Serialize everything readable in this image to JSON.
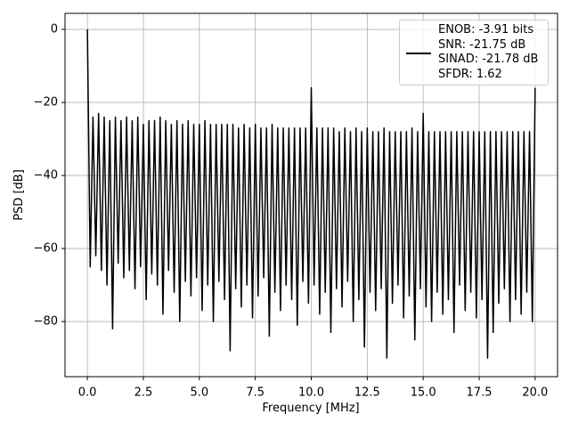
{
  "chart_data": {
    "type": "line",
    "xlabel": "Frequency [MHz]",
    "ylabel": "PSD [dB]",
    "xlim": [
      -1,
      21
    ],
    "ylim": [
      -95.1,
      4.4
    ],
    "xticks": [
      {
        "value": 0,
        "label": "0.0"
      },
      {
        "value": 2.5,
        "label": "2.5"
      },
      {
        "value": 5,
        "label": "5.0"
      },
      {
        "value": 7.5,
        "label": "7.5"
      },
      {
        "value": 10,
        "label": "10.0"
      },
      {
        "value": 12.5,
        "label": "12.5"
      },
      {
        "value": 15,
        "label": "15.0"
      },
      {
        "value": 17.5,
        "label": "17.5"
      },
      {
        "value": 20,
        "label": "20.0"
      }
    ],
    "yticks": [
      0,
      {
        "value": -20,
        "label": "−20"
      },
      {
        "value": -40,
        "label": "−40"
      },
      {
        "value": -60,
        "label": "−60"
      },
      {
        "value": -80,
        "label": "−80"
      }
    ],
    "grid": true,
    "legend": "upper right",
    "x": [
      0,
      0.125,
      0.25,
      0.375,
      0.5,
      0.625,
      0.75,
      0.875,
      1,
      1.125,
      1.25,
      1.375,
      1.5,
      1.625,
      1.75,
      1.875,
      2,
      2.125,
      2.25,
      2.375,
      2.5,
      2.625,
      2.75,
      2.875,
      3,
      3.125,
      3.25,
      3.375,
      3.5,
      3.625,
      3.75,
      3.875,
      4,
      4.125,
      4.25,
      4.375,
      4.5,
      4.625,
      4.75,
      4.875,
      5,
      5.125,
      5.25,
      5.375,
      5.5,
      5.625,
      5.75,
      5.875,
      6,
      6.125,
      6.25,
      6.375,
      6.5,
      6.625,
      6.75,
      6.875,
      7,
      7.125,
      7.25,
      7.375,
      7.5,
      7.625,
      7.75,
      7.875,
      8,
      8.125,
      8.25,
      8.375,
      8.5,
      8.625,
      8.75,
      8.875,
      9,
      9.125,
      9.25,
      9.375,
      9.5,
      9.625,
      9.75,
      9.875,
      10,
      10.125,
      10.25,
      10.375,
      10.5,
      10.625,
      10.75,
      10.875,
      11,
      11.125,
      11.25,
      11.375,
      11.5,
      11.625,
      11.75,
      11.875,
      12,
      12.125,
      12.25,
      12.375,
      12.5,
      12.625,
      12.75,
      12.875,
      13,
      13.125,
      13.25,
      13.375,
      13.5,
      13.625,
      13.75,
      13.875,
      14,
      14.125,
      14.25,
      14.375,
      14.5,
      14.625,
      14.75,
      14.875,
      15,
      15.125,
      15.25,
      15.375,
      15.5,
      15.625,
      15.75,
      15.875,
      16,
      16.125,
      16.25,
      16.375,
      16.5,
      16.625,
      16.75,
      16.875,
      17,
      17.125,
      17.25,
      17.375,
      17.5,
      17.625,
      17.75,
      17.875,
      18,
      18.125,
      18.25,
      18.375,
      18.5,
      18.625,
      18.75,
      18.875,
      19,
      19.125,
      19.25,
      19.375,
      19.5,
      19.625,
      19.75,
      19.875,
      20
    ],
    "series": [
      {
        "name": "ENOB: -3.91 bits\nSNR: -21.75 dB\nSINAD: -21.78 dB\nSFDR: 1.62",
        "color": "#000000",
        "values": [
          0,
          -65,
          -24,
          -62,
          -23,
          -66,
          -24,
          -70,
          -25,
          -82,
          -24,
          -64,
          -25,
          -68,
          -24,
          -66,
          -25,
          -71,
          -24,
          -65,
          -26,
          -74,
          -25,
          -67,
          -25,
          -70,
          -24,
          -78,
          -25,
          -66,
          -26,
          -72,
          -25,
          -80,
          -26,
          -69,
          -25,
          -73,
          -26,
          -68,
          -26,
          -77,
          -25,
          -70,
          -26,
          -80,
          -26,
          -69,
          -26,
          -74,
          -26,
          -88,
          -26,
          -71,
          -27,
          -76,
          -26,
          -70,
          -27,
          -79,
          -26,
          -73,
          -27,
          -68,
          -27,
          -84,
          -26,
          -72,
          -27,
          -77,
          -27,
          -70,
          -27,
          -74,
          -27,
          -81,
          -27,
          -69,
          -27,
          -75,
          -16,
          -70,
          -27,
          -78,
          -27,
          -72,
          -27,
          -83,
          -27,
          -71,
          -28,
          -76,
          -27,
          -69,
          -28,
          -80,
          -27,
          -74,
          -28,
          -87,
          -27,
          -72,
          -28,
          -77,
          -28,
          -71,
          -27,
          -90,
          -28,
          -75,
          -28,
          -70,
          -28,
          -79,
          -28,
          -73,
          -27,
          -85,
          -28,
          -71,
          -23,
          -76,
          -28,
          -80,
          -28,
          -72,
          -28,
          -78,
          -28,
          -74,
          -28,
          -83,
          -28,
          -70,
          -28,
          -77,
          -28,
          -72,
          -28,
          -79,
          -28,
          -74,
          -28,
          -90,
          -28,
          -83,
          -28,
          -75,
          -28,
          -71,
          -28,
          -80,
          -28,
          -74,
          -28,
          -78,
          -28,
          -72,
          -28,
          -80,
          -16
        ]
      }
    ]
  }
}
